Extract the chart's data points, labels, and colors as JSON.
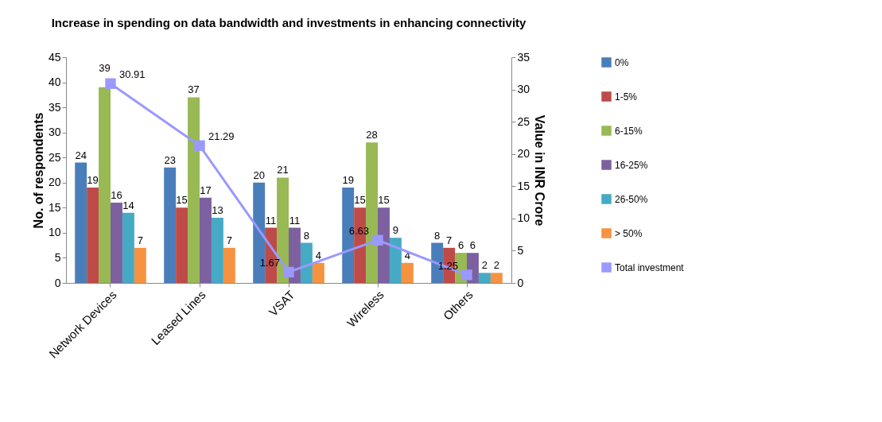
{
  "chart_data": {
    "type": "bar",
    "title": "Increase in spending on data bandwidth and investments in enhancing connectivity",
    "ylabel": "No. of respondents",
    "y2label": "Value in INR Crore",
    "categories": [
      "Network Devices",
      "Leased Lines",
      "VSAT",
      "Wireless",
      "Others"
    ],
    "series": [
      {
        "name": "0%",
        "color": "#4a7ebb",
        "values": [
          24,
          23,
          20,
          19,
          8
        ]
      },
      {
        "name": "1-5%",
        "color": "#be4b48",
        "values": [
          19,
          15,
          11,
          15,
          7
        ]
      },
      {
        "name": "6-15%",
        "color": "#98b954",
        "values": [
          39,
          37,
          21,
          28,
          6
        ]
      },
      {
        "name": "16-25%",
        "color": "#7d60a0",
        "values": [
          16,
          17,
          11,
          15,
          6
        ]
      },
      {
        "name": "26-50%",
        "color": "#46aac5",
        "values": [
          14,
          13,
          8,
          9,
          2
        ]
      },
      {
        "name": "> 50%",
        "color": "#f69240",
        "values": [
          7,
          7,
          4,
          4,
          2
        ]
      },
      {
        "name": "Total investment",
        "type": "line",
        "axis": "y2",
        "color": "#9999ff",
        "marker": "square",
        "values": [
          30.91,
          21.29,
          1.67,
          6.63,
          1.25
        ]
      }
    ],
    "ylim": [
      0,
      45
    ],
    "yticks": [
      0,
      5,
      10,
      15,
      20,
      25,
      30,
      35,
      40,
      45
    ],
    "y2lim": [
      0,
      35
    ],
    "y2ticks": [
      0,
      5,
      10,
      15,
      20,
      25,
      30,
      35
    ],
    "data_labels": true,
    "grid": false,
    "legend": "right"
  }
}
